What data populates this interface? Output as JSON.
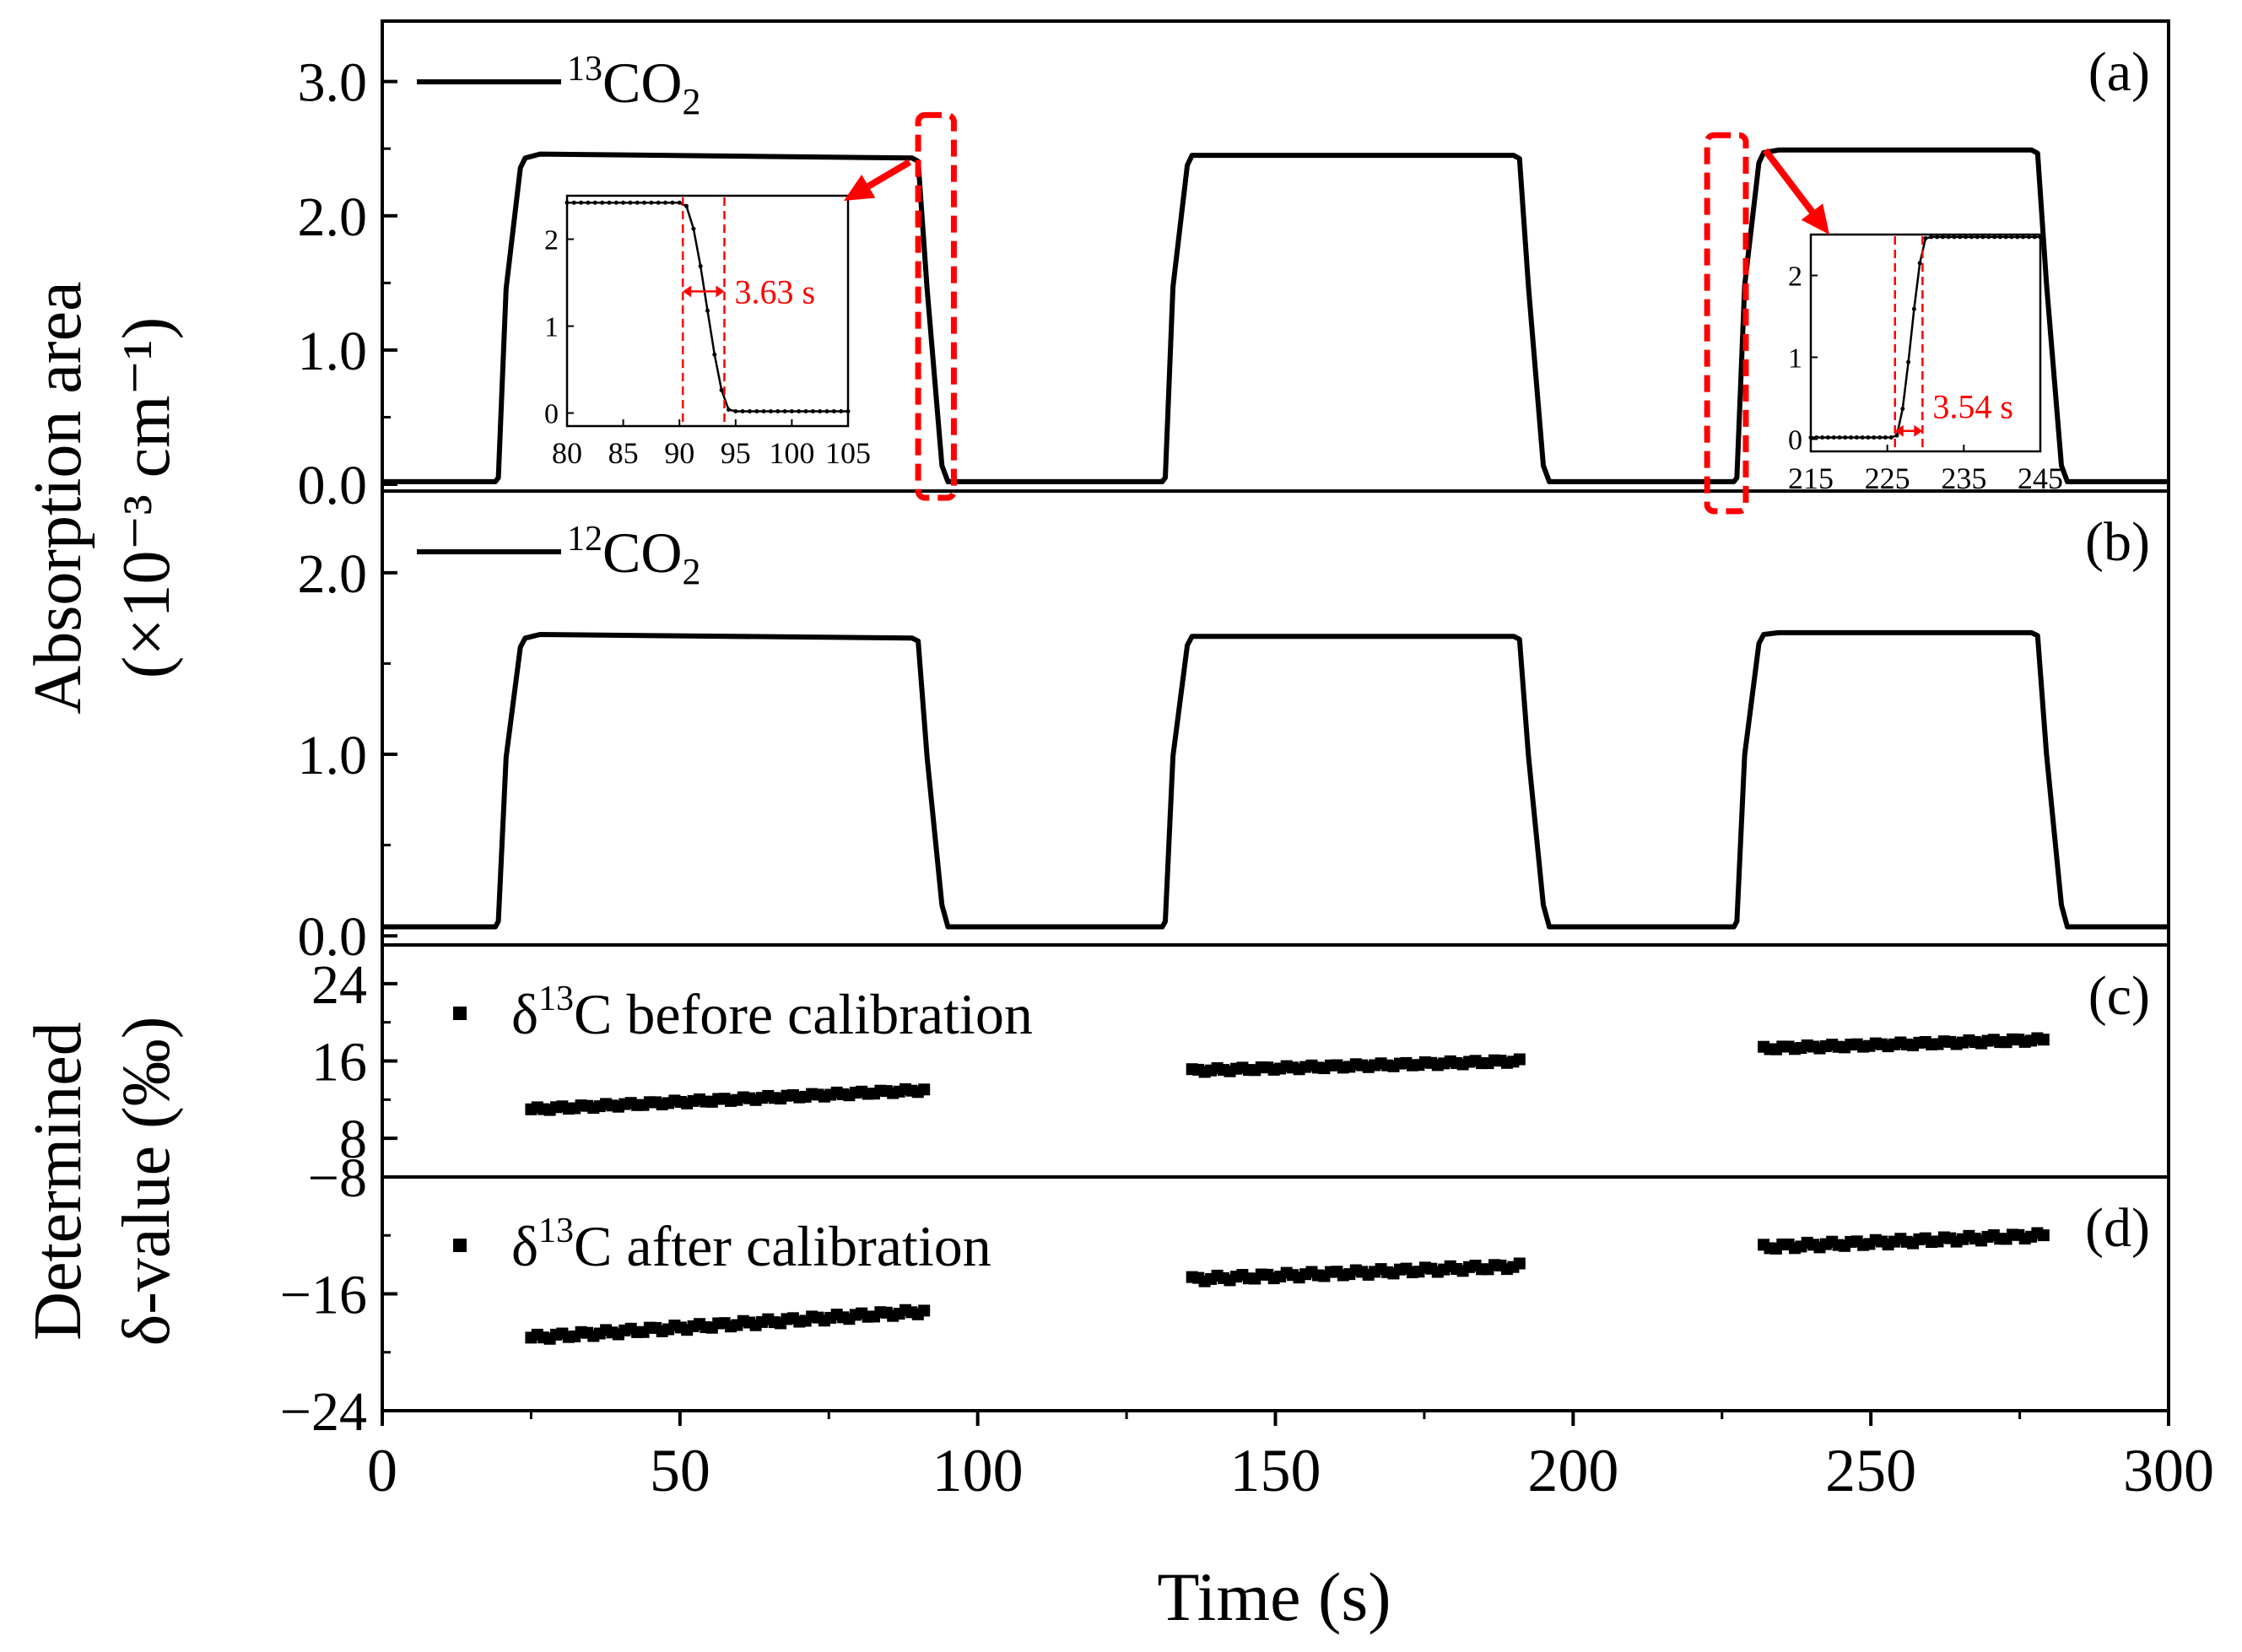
{
  "chart_data": {
    "type": "line",
    "x_axis": {
      "label": "Time (s)",
      "xlim": [
        0,
        300
      ],
      "ticks": [
        0,
        50,
        100,
        150,
        200,
        250,
        300
      ],
      "tick_labels": [
        "0",
        "50",
        "100",
        "150",
        "200",
        "250",
        "300"
      ]
    },
    "y_label_top": {
      "line1": "Absorption area",
      "line2": "(×10⁻³ cm⁻¹)"
    },
    "y_label_bottom": {
      "line1": "Determined",
      "line2": "δ-value (‰)"
    },
    "panels": [
      {
        "id": "a",
        "label": "(a)",
        "type": "line",
        "legend_main": "CO",
        "legend_sup": "13",
        "legend_sub": "2",
        "ylim": [
          -0.05,
          3.45
        ],
        "ticks": [
          0,
          1,
          2,
          3
        ],
        "tick_labels": [
          "0.0",
          "1.0",
          "2.0",
          "3.0"
        ],
        "minor_step": 0.5,
        "baseline": 0.02,
        "segments": [
          {
            "rise": [
              19,
              24
            ],
            "fall": [
              90,
              95
            ],
            "y_start": 2.43,
            "y_peak": 2.46,
            "y_end": 2.43
          },
          {
            "rise": [
              131,
              136
            ],
            "fall": [
              191,
              196
            ],
            "y_start": 2.45,
            "y_peak": 2.45,
            "y_end": 2.45
          },
          {
            "rise": [
              227,
              232
            ],
            "fall": [
              278,
              283
            ],
            "y_start": 2.47,
            "y_peak": 2.49,
            "y_end": 2.49
          }
        ]
      },
      {
        "id": "b",
        "label": "(b)",
        "type": "line",
        "legend_main": "CO",
        "legend_sup": "12",
        "legend_sub": "2",
        "ylim": [
          -0.05,
          2.45
        ],
        "ticks": [
          0,
          1,
          2
        ],
        "tick_labels": [
          "0.0",
          "1.0",
          "2.0"
        ],
        "minor_step": 0.5,
        "baseline": 0.05,
        "segments": [
          {
            "rise": [
              19,
              24
            ],
            "fall": [
              90,
              95
            ],
            "y_start": 1.64,
            "y_peak": 1.66,
            "y_end": 1.64
          },
          {
            "rise": [
              131,
              136
            ],
            "fall": [
              191,
              196
            ],
            "y_start": 1.65,
            "y_peak": 1.65,
            "y_end": 1.65
          },
          {
            "rise": [
              227,
              232
            ],
            "fall": [
              278,
              283
            ],
            "y_start": 1.66,
            "y_peak": 1.67,
            "y_end": 1.67
          }
        ]
      },
      {
        "id": "c",
        "label": "(c)",
        "type": "scatter",
        "legend_pre": "δ",
        "legend_sup": "13",
        "legend_post": "C before calibration",
        "ylim": [
          4,
          28
        ],
        "ticks": [
          8,
          16,
          24
        ],
        "tick_labels": [
          "8",
          "16",
          "24"
        ],
        "minor_step": 4,
        "segments": [
          {
            "x_range": [
              25,
              91
            ],
            "y_range": [
              11.0,
              13.0
            ]
          },
          {
            "x_range": [
              136,
              191
            ],
            "y_range": [
              15.0,
              16.0
            ]
          },
          {
            "x_range": [
              232,
              279
            ],
            "y_range": [
              17.3,
              18.2
            ]
          }
        ]
      },
      {
        "id": "d",
        "label": "(d)",
        "type": "scatter",
        "legend_pre": "δ",
        "legend_sup": "13",
        "legend_post": "C after calibration",
        "ylim": [
          -24,
          -8
        ],
        "ticks": [
          -8,
          -16,
          -24
        ],
        "tick_labels": [
          "−8",
          "−16",
          "−24"
        ],
        "minor_step": 4,
        "segments": [
          {
            "x_range": [
              25,
              91
            ],
            "y_range": [
              -19.0,
              -17.2
            ]
          },
          {
            "x_range": [
              136,
              191
            ],
            "y_range": [
              -15.0,
              -14.1
            ]
          },
          {
            "x_range": [
              232,
              279
            ],
            "y_range": [
              -12.8,
              -12.0
            ]
          }
        ]
      }
    ],
    "insets": [
      {
        "id": "inset-left",
        "panel": "a",
        "xlim": [
          80,
          105
        ],
        "ylim": [
          -0.15,
          2.5
        ],
        "ticks_x": [
          80,
          85,
          90,
          95,
          100,
          105
        ],
        "tick_labels_x": [
          "80",
          "85",
          "90",
          "95",
          "100",
          "105"
        ],
        "ticks_y": [
          0,
          1,
          2
        ],
        "tick_labels_y": [
          "0",
          "1",
          "2"
        ],
        "direction": "fall",
        "t0": 90.3,
        "t1": 94.0,
        "y_high": 2.42,
        "y_low": 0.02,
        "annotation": "3.63 s",
        "source_box_x": [
          90.0,
          96.0
        ],
        "source_box_y": [
          -0.1,
          2.75
        ]
      },
      {
        "id": "inset-right",
        "panel": "a",
        "xlim": [
          215,
          245
        ],
        "ylim": [
          -0.15,
          2.5
        ],
        "ticks_x": [
          215,
          225,
          235,
          245
        ],
        "tick_labels_x": [
          "215",
          "225",
          "235",
          "245"
        ],
        "ticks_y": [
          0,
          1,
          2
        ],
        "tick_labels_y": [
          "0",
          "1",
          "2"
        ],
        "direction": "rise",
        "t0": 226.0,
        "t1": 229.6,
        "y_high": 2.47,
        "y_low": 0.02,
        "annotation": "3.54 s",
        "source_box_x": [
          222.5,
          229.0
        ],
        "source_box_y": [
          -0.2,
          2.6
        ]
      }
    ]
  }
}
